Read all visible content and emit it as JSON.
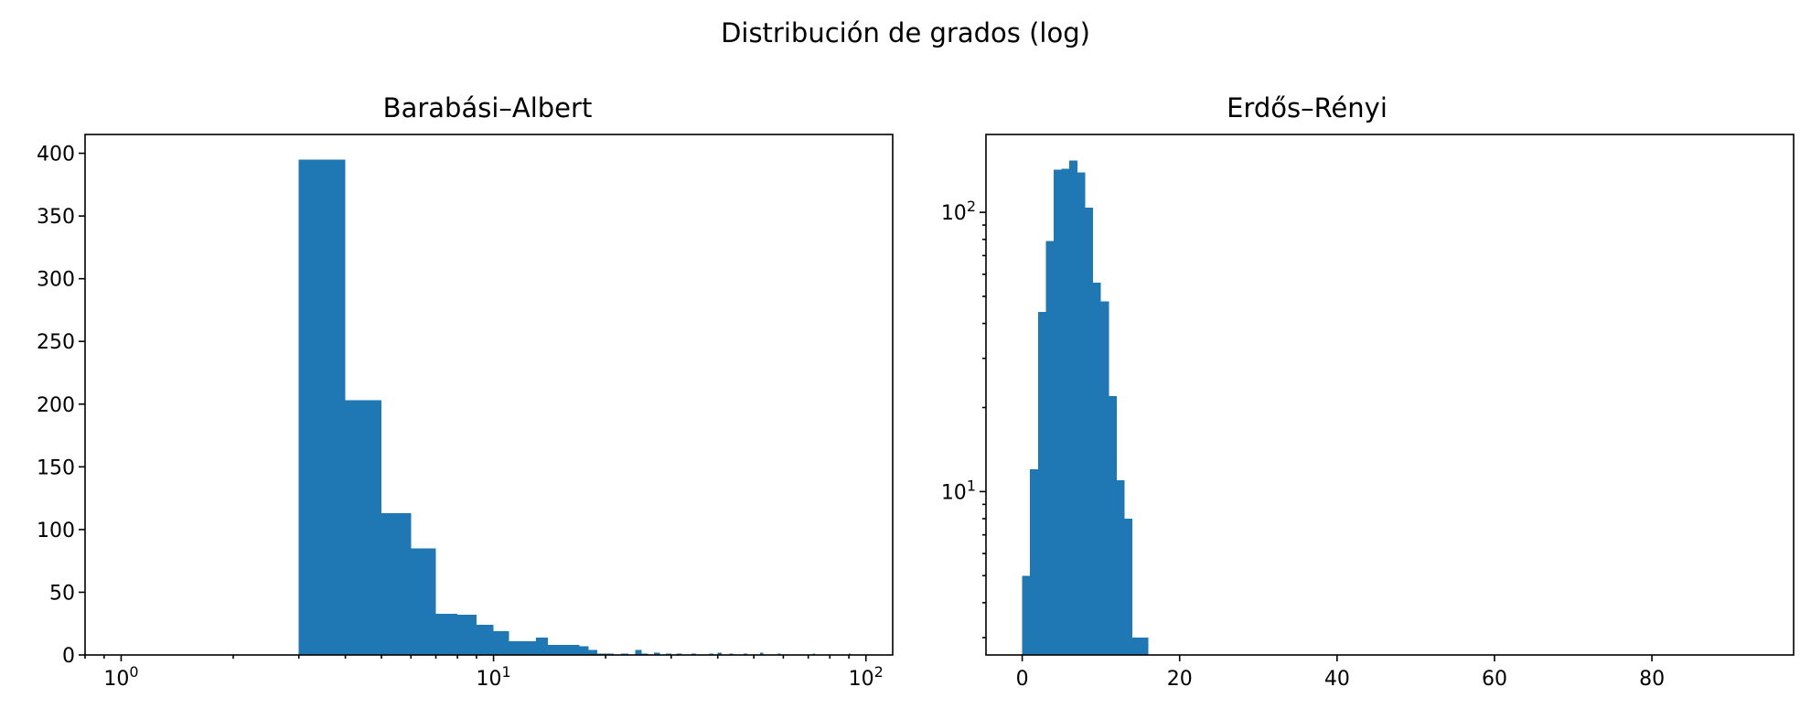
{
  "figure": {
    "suptitle": "Distribución de grados (log)"
  },
  "colors": {
    "bar": "#1f77b4",
    "axis": "#000000",
    "background": "#ffffff"
  },
  "chart_data": [
    {
      "type": "bar",
      "title": "Barabási–Albert",
      "xlabel": "",
      "ylabel": "",
      "xscale": "log",
      "yscale": "linear",
      "xlim": [
        0.8,
        118
      ],
      "ylim": [
        0,
        415
      ],
      "grid": false,
      "x_ticks": [
        {
          "value": 1,
          "base": "10",
          "exp": "0"
        },
        {
          "value": 10,
          "base": "10",
          "exp": "1"
        },
        {
          "value": 100,
          "base": "10",
          "exp": "2"
        }
      ],
      "y_ticks": [
        {
          "value": 0,
          "label": "0"
        },
        {
          "value": 50,
          "label": "50"
        },
        {
          "value": 100,
          "label": "100"
        },
        {
          "value": 150,
          "label": "150"
        },
        {
          "value": 200,
          "label": "200"
        },
        {
          "value": 250,
          "label": "250"
        },
        {
          "value": 300,
          "label": "300"
        },
        {
          "value": 350,
          "label": "350"
        },
        {
          "value": 400,
          "label": "400"
        }
      ],
      "bins": [
        {
          "x0": 3,
          "x1": 4,
          "value": 395
        },
        {
          "x0": 4,
          "x1": 5,
          "value": 203
        },
        {
          "x0": 5,
          "x1": 6,
          "value": 113
        },
        {
          "x0": 6,
          "x1": 7,
          "value": 85
        },
        {
          "x0": 7,
          "x1": 8,
          "value": 33
        },
        {
          "x0": 8,
          "x1": 9,
          "value": 32
        },
        {
          "x0": 9,
          "x1": 10,
          "value": 24
        },
        {
          "x0": 10,
          "x1": 11,
          "value": 19
        },
        {
          "x0": 11,
          "x1": 13,
          "value": 11
        },
        {
          "x0": 13,
          "x1": 14,
          "value": 14
        },
        {
          "x0": 14,
          "x1": 17,
          "value": 8
        },
        {
          "x0": 17,
          "x1": 18,
          "value": 7
        },
        {
          "x0": 18,
          "x1": 19,
          "value": 4
        },
        {
          "x0": 19,
          "x1": 21,
          "value": 1
        },
        {
          "x0": 22,
          "x1": 23,
          "value": 1
        },
        {
          "x0": 24,
          "x1": 25,
          "value": 4
        },
        {
          "x0": 25,
          "x1": 26,
          "value": 1
        },
        {
          "x0": 27,
          "x1": 28,
          "value": 2
        },
        {
          "x0": 29,
          "x1": 30,
          "value": 1
        },
        {
          "x0": 31,
          "x1": 32,
          "value": 1
        },
        {
          "x0": 34,
          "x1": 35,
          "value": 1
        },
        {
          "x0": 38,
          "x1": 39,
          "value": 1
        },
        {
          "x0": 40,
          "x1": 41,
          "value": 2
        },
        {
          "x0": 43,
          "x1": 44,
          "value": 1
        },
        {
          "x0": 47,
          "x1": 48,
          "value": 1
        },
        {
          "x0": 52,
          "x1": 53,
          "value": 2
        },
        {
          "x0": 58,
          "x1": 59,
          "value": 1
        },
        {
          "x0": 72,
          "x1": 73,
          "value": 1
        },
        {
          "x0": 90,
          "x1": 91,
          "value": 1
        }
      ]
    },
    {
      "type": "bar",
      "title": "Erdős–Rényi",
      "xlabel": "",
      "ylabel": "",
      "xscale": "linear",
      "yscale": "log",
      "xlim": [
        -4.6,
        98
      ],
      "ylim": [
        2.6,
        190
      ],
      "grid": false,
      "x_ticks": [
        {
          "value": 0,
          "label": "0"
        },
        {
          "value": 20,
          "label": "20"
        },
        {
          "value": 40,
          "label": "40"
        },
        {
          "value": 60,
          "label": "60"
        },
        {
          "value": 80,
          "label": "80"
        }
      ],
      "y_ticks": [
        {
          "value": 10,
          "base": "10",
          "exp": "1"
        },
        {
          "value": 100,
          "base": "10",
          "exp": "2"
        }
      ],
      "bins": [
        {
          "x0": 0,
          "x1": 1,
          "value": 5
        },
        {
          "x0": 1,
          "x1": 2,
          "value": 12
        },
        {
          "x0": 2,
          "x1": 3,
          "value": 44
        },
        {
          "x0": 3,
          "x1": 4,
          "value": 79
        },
        {
          "x0": 4,
          "x1": 5,
          "value": 142
        },
        {
          "x0": 5,
          "x1": 6,
          "value": 143
        },
        {
          "x0": 6,
          "x1": 7,
          "value": 153
        },
        {
          "x0": 7,
          "x1": 8,
          "value": 139
        },
        {
          "x0": 8,
          "x1": 9,
          "value": 104
        },
        {
          "x0": 9,
          "x1": 10,
          "value": 56
        },
        {
          "x0": 10,
          "x1": 11,
          "value": 48
        },
        {
          "x0": 11,
          "x1": 12,
          "value": 22
        },
        {
          "x0": 12,
          "x1": 13,
          "value": 11
        },
        {
          "x0": 13,
          "x1": 14,
          "value": 8
        },
        {
          "x0": 14,
          "x1": 16,
          "value": 3
        }
      ]
    }
  ]
}
